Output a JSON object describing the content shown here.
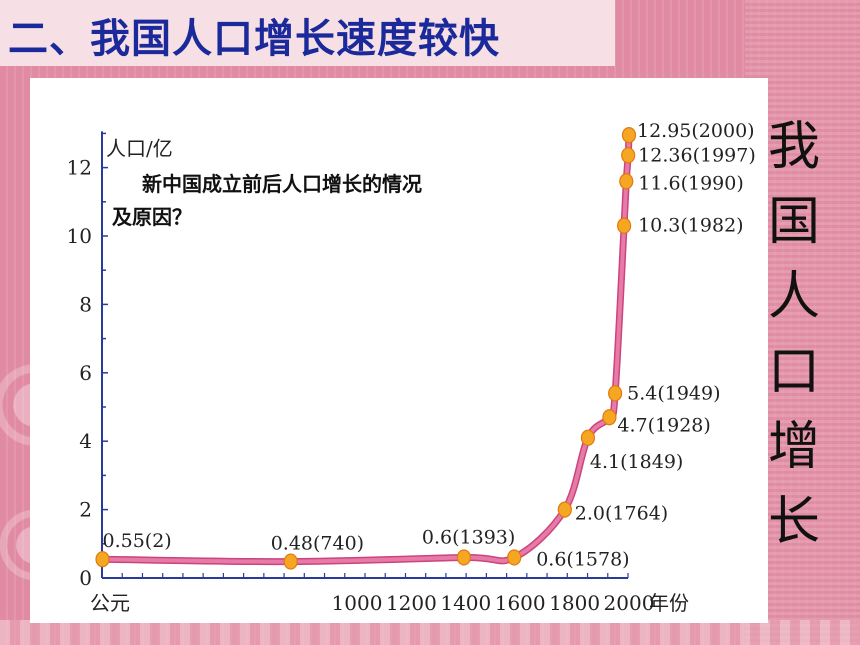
{
  "slide_title": "二、我国人口增长速度较快",
  "side_label_chars": [
    "我",
    "国",
    "人",
    "口",
    "增",
    "长"
  ],
  "question": {
    "line1": "新中国成立前后人口增长的情况",
    "line2": "及原因？"
  },
  "colors": {
    "title_text": "#1a2a9a",
    "curve": "#e87aa8",
    "marker": "#f5a623",
    "background": "#e08aa3"
  },
  "chart_data": {
    "type": "line",
    "title": "",
    "ylabel": "人口/亿",
    "xlabel": "年份",
    "x_start_label": "公元",
    "ylim": [
      0,
      13
    ],
    "y_ticks": [
      0,
      2,
      4,
      6,
      8,
      10,
      12
    ],
    "x_tick_labels": [
      {
        "year": 1000,
        "label": "1000"
      },
      {
        "year": 1200,
        "label": "1200"
      },
      {
        "year": 1400,
        "label": "1400"
      },
      {
        "year": 1600,
        "label": "1600"
      },
      {
        "year": 1800,
        "label": "1800"
      },
      {
        "year": 2000,
        "label": "2000"
      }
    ],
    "points": [
      {
        "year": 2,
        "value": 0.55,
        "label": "0.55(2)"
      },
      {
        "year": 740,
        "value": 0.48,
        "label": "0.48(740)"
      },
      {
        "year": 1393,
        "value": 0.6,
        "label": "0.6(1393)"
      },
      {
        "year": 1578,
        "value": 0.6,
        "label": "0.6(1578)"
      },
      {
        "year": 1764,
        "value": 2.0,
        "label": "2.0(1764)"
      },
      {
        "year": 1849,
        "value": 4.1,
        "label": "4.1(1849)"
      },
      {
        "year": 1928,
        "value": 4.7,
        "label": "4.7(1928)"
      },
      {
        "year": 1949,
        "value": 5.4,
        "label": "5.4(1949)"
      },
      {
        "year": 1982,
        "value": 10.3,
        "label": "10.3(1982)"
      },
      {
        "year": 1990,
        "value": 11.6,
        "label": "11.6(1990)"
      },
      {
        "year": 1997,
        "value": 12.36,
        "label": "12.36(1997)"
      },
      {
        "year": 2000,
        "value": 12.95,
        "label": "12.95(2000)"
      }
    ]
  }
}
